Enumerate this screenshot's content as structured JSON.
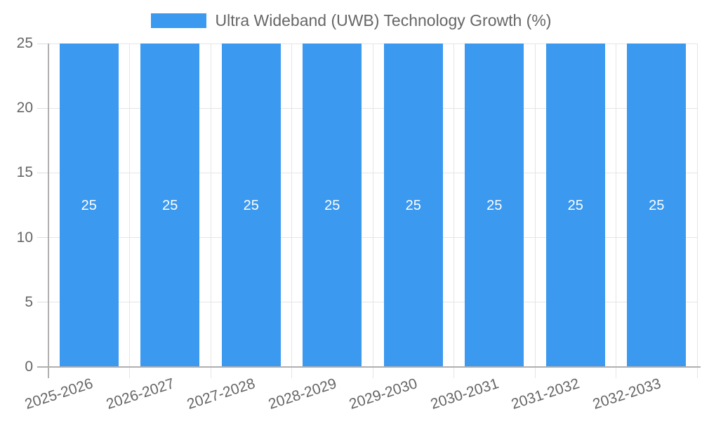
{
  "legend": {
    "label": "Ultra Wideband (UWB) Technology Growth (%)"
  },
  "chart_data": {
    "type": "bar",
    "title": "Ultra Wideband (UWB) Technology Growth (%)",
    "categories": [
      "2025-2026",
      "2026-2027",
      "2027-2028",
      "2028-2029",
      "2029-2030",
      "2030-2031",
      "2031-2032",
      "2032-2033"
    ],
    "series": [
      {
        "name": "Ultra Wideband (UWB) Technology Growth (%)",
        "values": [
          25,
          25,
          25,
          25,
          25,
          25,
          25,
          25
        ]
      }
    ],
    "bar_value_labels": [
      "25",
      "25",
      "25",
      "25",
      "25",
      "25",
      "25",
      "25"
    ],
    "xlabel": "",
    "ylabel": "",
    "y_ticks": [
      0,
      5,
      10,
      15,
      20,
      25
    ],
    "ylim": [
      0,
      25
    ],
    "grid": true,
    "legend_position": "top",
    "x_tick_rotation_deg": -18,
    "colors": {
      "bar": "#3b99f0",
      "bar_label": "#ffffff",
      "gridline": "#e5e5e5",
      "tick_line": "#dcdcdc",
      "axis_line": "#b0b0b0",
      "text": "#666666",
      "background": "#ffffff"
    }
  }
}
